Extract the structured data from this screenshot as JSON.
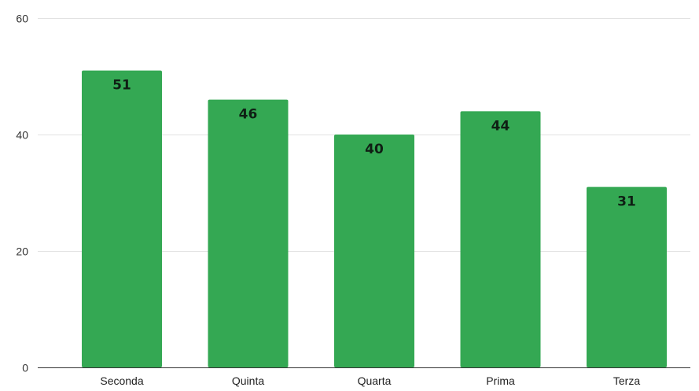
{
  "chart_data": {
    "type": "bar",
    "categories": [
      "Seconda",
      "Quinta",
      "Quarta",
      "Prima",
      "Terza"
    ],
    "values": [
      51,
      46,
      40,
      44,
      31
    ],
    "title": "",
    "xlabel": "",
    "ylabel": "",
    "ylim": [
      0,
      60
    ],
    "yticks": [
      0,
      20,
      40,
      60
    ],
    "grid": true,
    "legend": "none",
    "colors": {
      "bar": "#34a853",
      "grid": "#e2e2e2",
      "baseline": "#333333"
    },
    "data_labels": true
  }
}
